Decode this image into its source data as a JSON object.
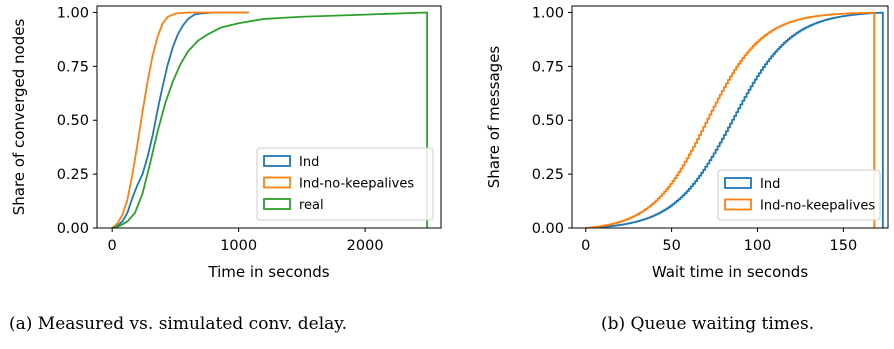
{
  "captions": {
    "a": "(a) Measured vs. simulated conv. delay.",
    "b": "(b) Queue waiting times."
  },
  "chart_data": [
    {
      "type": "line",
      "xlabel": "Time in seconds",
      "ylabel": "Share of converged nodes",
      "xlim": [
        -120,
        2600
      ],
      "ylim": [
        0,
        1.03
      ],
      "xticks": [
        0,
        1000,
        2000
      ],
      "yticks": [
        0.0,
        0.25,
        0.5,
        0.75,
        1.0
      ],
      "ytick_labels": [
        "0.00",
        "0.25",
        "0.50",
        "0.75",
        "1.00"
      ],
      "legend": "bottom-right",
      "grid": false,
      "series": [
        {
          "name": "Ind",
          "color": "#1f77b4",
          "points": [
            [
              0,
              0
            ],
            [
              40,
              0.01
            ],
            [
              80,
              0.03
            ],
            [
              120,
              0.07
            ],
            [
              160,
              0.14
            ],
            [
              200,
              0.2
            ],
            [
              240,
              0.25
            ],
            [
              280,
              0.33
            ],
            [
              320,
              0.43
            ],
            [
              360,
              0.55
            ],
            [
              400,
              0.66
            ],
            [
              440,
              0.76
            ],
            [
              480,
              0.84
            ],
            [
              520,
              0.9
            ],
            [
              560,
              0.94
            ],
            [
              600,
              0.97
            ],
            [
              650,
              0.99
            ],
            [
              700,
              0.995
            ],
            [
              800,
              1.0
            ],
            [
              1080,
              1.0
            ]
          ]
        },
        {
          "name": "Ind-no-keepalives",
          "color": "#ff7f0e",
          "points": [
            [
              0,
              0
            ],
            [
              40,
              0.02
            ],
            [
              80,
              0.06
            ],
            [
              120,
              0.13
            ],
            [
              160,
              0.25
            ],
            [
              200,
              0.39
            ],
            [
              240,
              0.54
            ],
            [
              280,
              0.68
            ],
            [
              320,
              0.8
            ],
            [
              360,
              0.89
            ],
            [
              400,
              0.95
            ],
            [
              440,
              0.98
            ],
            [
              500,
              0.995
            ],
            [
              600,
              1.0
            ],
            [
              1080,
              1.0
            ]
          ]
        },
        {
          "name": "real",
          "color": "#2ca02c",
          "points": [
            [
              0,
              0
            ],
            [
              60,
              0.01
            ],
            [
              120,
              0.03
            ],
            [
              180,
              0.07
            ],
            [
              240,
              0.16
            ],
            [
              300,
              0.3
            ],
            [
              360,
              0.45
            ],
            [
              420,
              0.58
            ],
            [
              480,
              0.68
            ],
            [
              540,
              0.76
            ],
            [
              600,
              0.82
            ],
            [
              680,
              0.87
            ],
            [
              760,
              0.9
            ],
            [
              860,
              0.93
            ],
            [
              1000,
              0.95
            ],
            [
              1200,
              0.97
            ],
            [
              1500,
              0.98
            ],
            [
              2000,
              0.99
            ],
            [
              2490,
              1.0
            ],
            [
              2490,
              0.0
            ]
          ]
        }
      ]
    },
    {
      "type": "line",
      "xlabel": "Wait time in seconds",
      "ylabel": "Share of messages",
      "xlim": [
        -8,
        176
      ],
      "ylim": [
        0,
        1.03
      ],
      "xticks": [
        0,
        50,
        100,
        150
      ],
      "yticks": [
        0.0,
        0.25,
        0.5,
        0.75,
        1.0
      ],
      "ytick_labels": [
        "0.00",
        "0.25",
        "0.50",
        "0.75",
        "1.00"
      ],
      "legend": "bottom-right",
      "grid": false,
      "step": 1.2,
      "series": [
        {
          "name": "Ind",
          "color": "#1f77b4",
          "logistic": {
            "center": 85,
            "scale": 17
          },
          "cutoff": 173
        },
        {
          "name": "Ind-no-keepalives",
          "color": "#ff7f0e",
          "logistic": {
            "center": 70,
            "scale": 16
          },
          "cutoff": 168
        }
      ]
    }
  ]
}
